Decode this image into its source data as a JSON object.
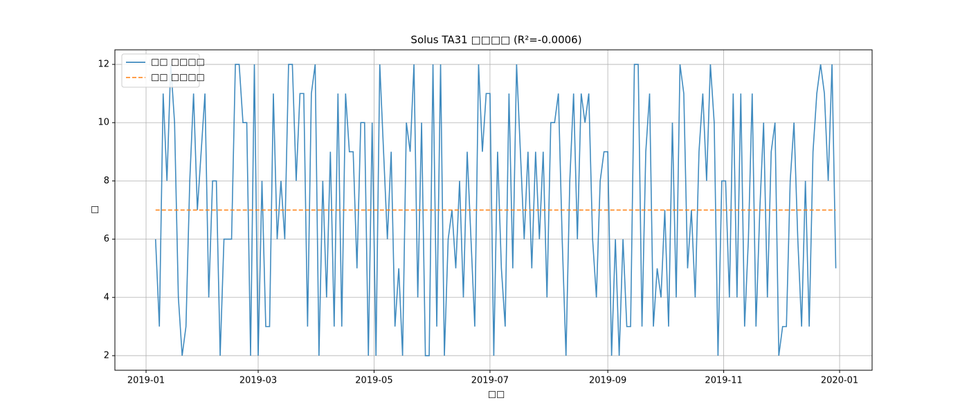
{
  "chart_data": {
    "type": "line",
    "title": "Solus TA31 □□□□ (R²=-0.0006)",
    "xlabel": "□□",
    "ylabel": "□",
    "legend": "upper left",
    "grid": true,
    "xlim": [
      -16.4,
      382.1
    ],
    "ylim": [
      1.5,
      12.5
    ],
    "xticks": [
      {
        "value": 0,
        "label": "2019-01"
      },
      {
        "value": 59,
        "label": "2019-03"
      },
      {
        "value": 120,
        "label": "2019-05"
      },
      {
        "value": 181,
        "label": "2019-07"
      },
      {
        "value": 243,
        "label": "2019-09"
      },
      {
        "value": 304,
        "label": "2019-11"
      },
      {
        "value": 365,
        "label": "2020-01"
      }
    ],
    "yticks": [
      2,
      4,
      6,
      8,
      10,
      12
    ],
    "series": [
      {
        "name": "□□ □□□□",
        "color": "#1f77b4",
        "style": "solid",
        "x": [
          5,
          7,
          9,
          11,
          13,
          15,
          17,
          19,
          21,
          23,
          25,
          27,
          29,
          31,
          33,
          35,
          37,
          39,
          41,
          43,
          45,
          47,
          49,
          51,
          53,
          55,
          57,
          59,
          61,
          63,
          65,
          67,
          69,
          71,
          73,
          75,
          77,
          79,
          81,
          83,
          85,
          87,
          89,
          91,
          93,
          95,
          97,
          99,
          101,
          103,
          105,
          107,
          109,
          111,
          113,
          115,
          117,
          119,
          121,
          123,
          125,
          127,
          129,
          131,
          133,
          135,
          137,
          139,
          141,
          143,
          145,
          147,
          149,
          151,
          153,
          155,
          157,
          159,
          161,
          163,
          165,
          167,
          169,
          171,
          173,
          175,
          177,
          179,
          181,
          183,
          185,
          187,
          189,
          191,
          193,
          195,
          197,
          199,
          201,
          203,
          205,
          207,
          209,
          211,
          213,
          215,
          217,
          219,
          221,
          223,
          225,
          227,
          229,
          231,
          233,
          235,
          237,
          239,
          241,
          243,
          245,
          247,
          249,
          251,
          253,
          255,
          257,
          259,
          261,
          263,
          265,
          267,
          269,
          271,
          273,
          275,
          277,
          279,
          281,
          283,
          285,
          287,
          289,
          291,
          293,
          295,
          297,
          299,
          301,
          303,
          305,
          307,
          309,
          311,
          313,
          315,
          317,
          319,
          321,
          323,
          325,
          327,
          329,
          331,
          333,
          335,
          337,
          339,
          341,
          343,
          345,
          347,
          349,
          351,
          353,
          355,
          357,
          359,
          361,
          363
        ],
        "values": [
          6,
          3,
          11,
          8,
          12,
          10,
          4,
          2,
          3,
          8,
          11,
          7,
          9,
          11,
          4,
          8,
          8,
          2,
          6,
          6,
          6,
          12,
          12,
          10,
          10,
          2,
          12,
          2,
          8,
          3,
          3,
          11,
          6,
          8,
          6,
          12,
          12,
          8,
          11,
          11,
          3,
          11,
          12,
          2,
          8,
          4,
          9,
          3,
          11,
          3,
          11,
          9,
          9,
          5,
          10,
          10,
          2,
          10,
          2,
          12,
          9,
          6,
          9,
          3,
          5,
          2,
          10,
          9,
          12,
          4,
          10,
          2,
          2,
          12,
          3,
          12,
          2,
          6,
          7,
          5,
          8,
          4,
          9,
          6,
          3,
          12,
          9,
          11,
          11,
          2,
          9,
          5,
          3,
          11,
          5,
          12,
          9,
          6,
          9,
          5,
          9,
          6,
          9,
          4,
          10,
          10,
          11,
          6,
          2,
          8,
          11,
          6,
          11,
          10,
          11,
          6,
          4,
          8,
          9,
          9,
          2,
          6,
          2,
          6,
          3,
          3,
          12,
          12,
          3,
          9,
          11,
          3,
          5,
          4,
          7,
          3,
          10,
          4,
          12,
          11,
          5,
          7,
          4,
          9,
          11,
          8,
          12,
          10,
          2,
          8,
          8,
          4,
          11,
          4,
          11,
          3,
          6,
          11,
          3,
          7,
          10,
          4,
          9,
          10,
          2,
          3,
          3,
          8,
          10,
          6,
          3,
          8,
          3,
          9,
          11,
          12,
          11,
          8,
          12,
          5
        ]
      },
      {
        "name": "□□ □□□□",
        "color": "#ff7f0e",
        "style": "dashed",
        "x": [
          5,
          363
        ],
        "values": [
          7,
          7
        ]
      }
    ]
  }
}
